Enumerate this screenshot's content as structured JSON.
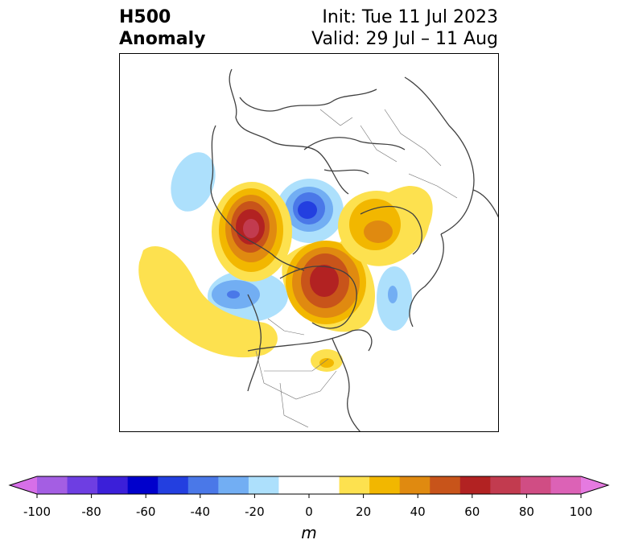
{
  "title": {
    "left_line1": "H500",
    "left_line2": "Anomaly",
    "right_line1": "Init: Tue 11 Jul 2023",
    "right_line2": "Valid: 29 Jul – 11 Aug"
  },
  "colorbar": {
    "unit_label": "m",
    "ticks": [
      "-100",
      "-80",
      "-60",
      "-40",
      "-20",
      "0",
      "20",
      "40",
      "60",
      "80",
      "100"
    ],
    "extend_low_color": "#d66fe8",
    "extend_high_color": "#e57ae0",
    "colors": [
      "#a45ee3",
      "#6e3ee2",
      "#3b1fd9",
      "#0000cc",
      "#233fe0",
      "#4a78e8",
      "#72aef3",
      "#ade0fc",
      "#ffffff",
      "#ffffff",
      "#fde14f",
      "#f2b700",
      "#e08a10",
      "#c8541a",
      "#b22222",
      "#c23b4f",
      "#d04d84",
      "#dc62b6"
    ]
  }
}
